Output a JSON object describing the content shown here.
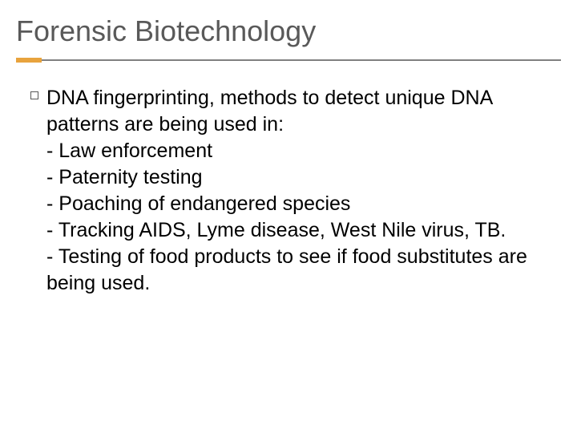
{
  "slide": {
    "title": "Forensic Biotechnology",
    "accent_color": "#e8a33d",
    "divider_color": "#808080",
    "title_color": "#595959",
    "text_color": "#000000",
    "background_color": "#ffffff",
    "title_fontsize": 36,
    "body_fontsize": 25,
    "intro": " DNA fingerprinting, methods to detect unique DNA patterns are being used in:",
    "items": [
      "-  Law enforcement",
      "-  Paternity testing",
      "-  Poaching of endangered species",
      "-  Tracking AIDS, Lyme disease, West Nile virus, TB.",
      "-  Testing of food products to see if food substitutes are being used."
    ]
  }
}
